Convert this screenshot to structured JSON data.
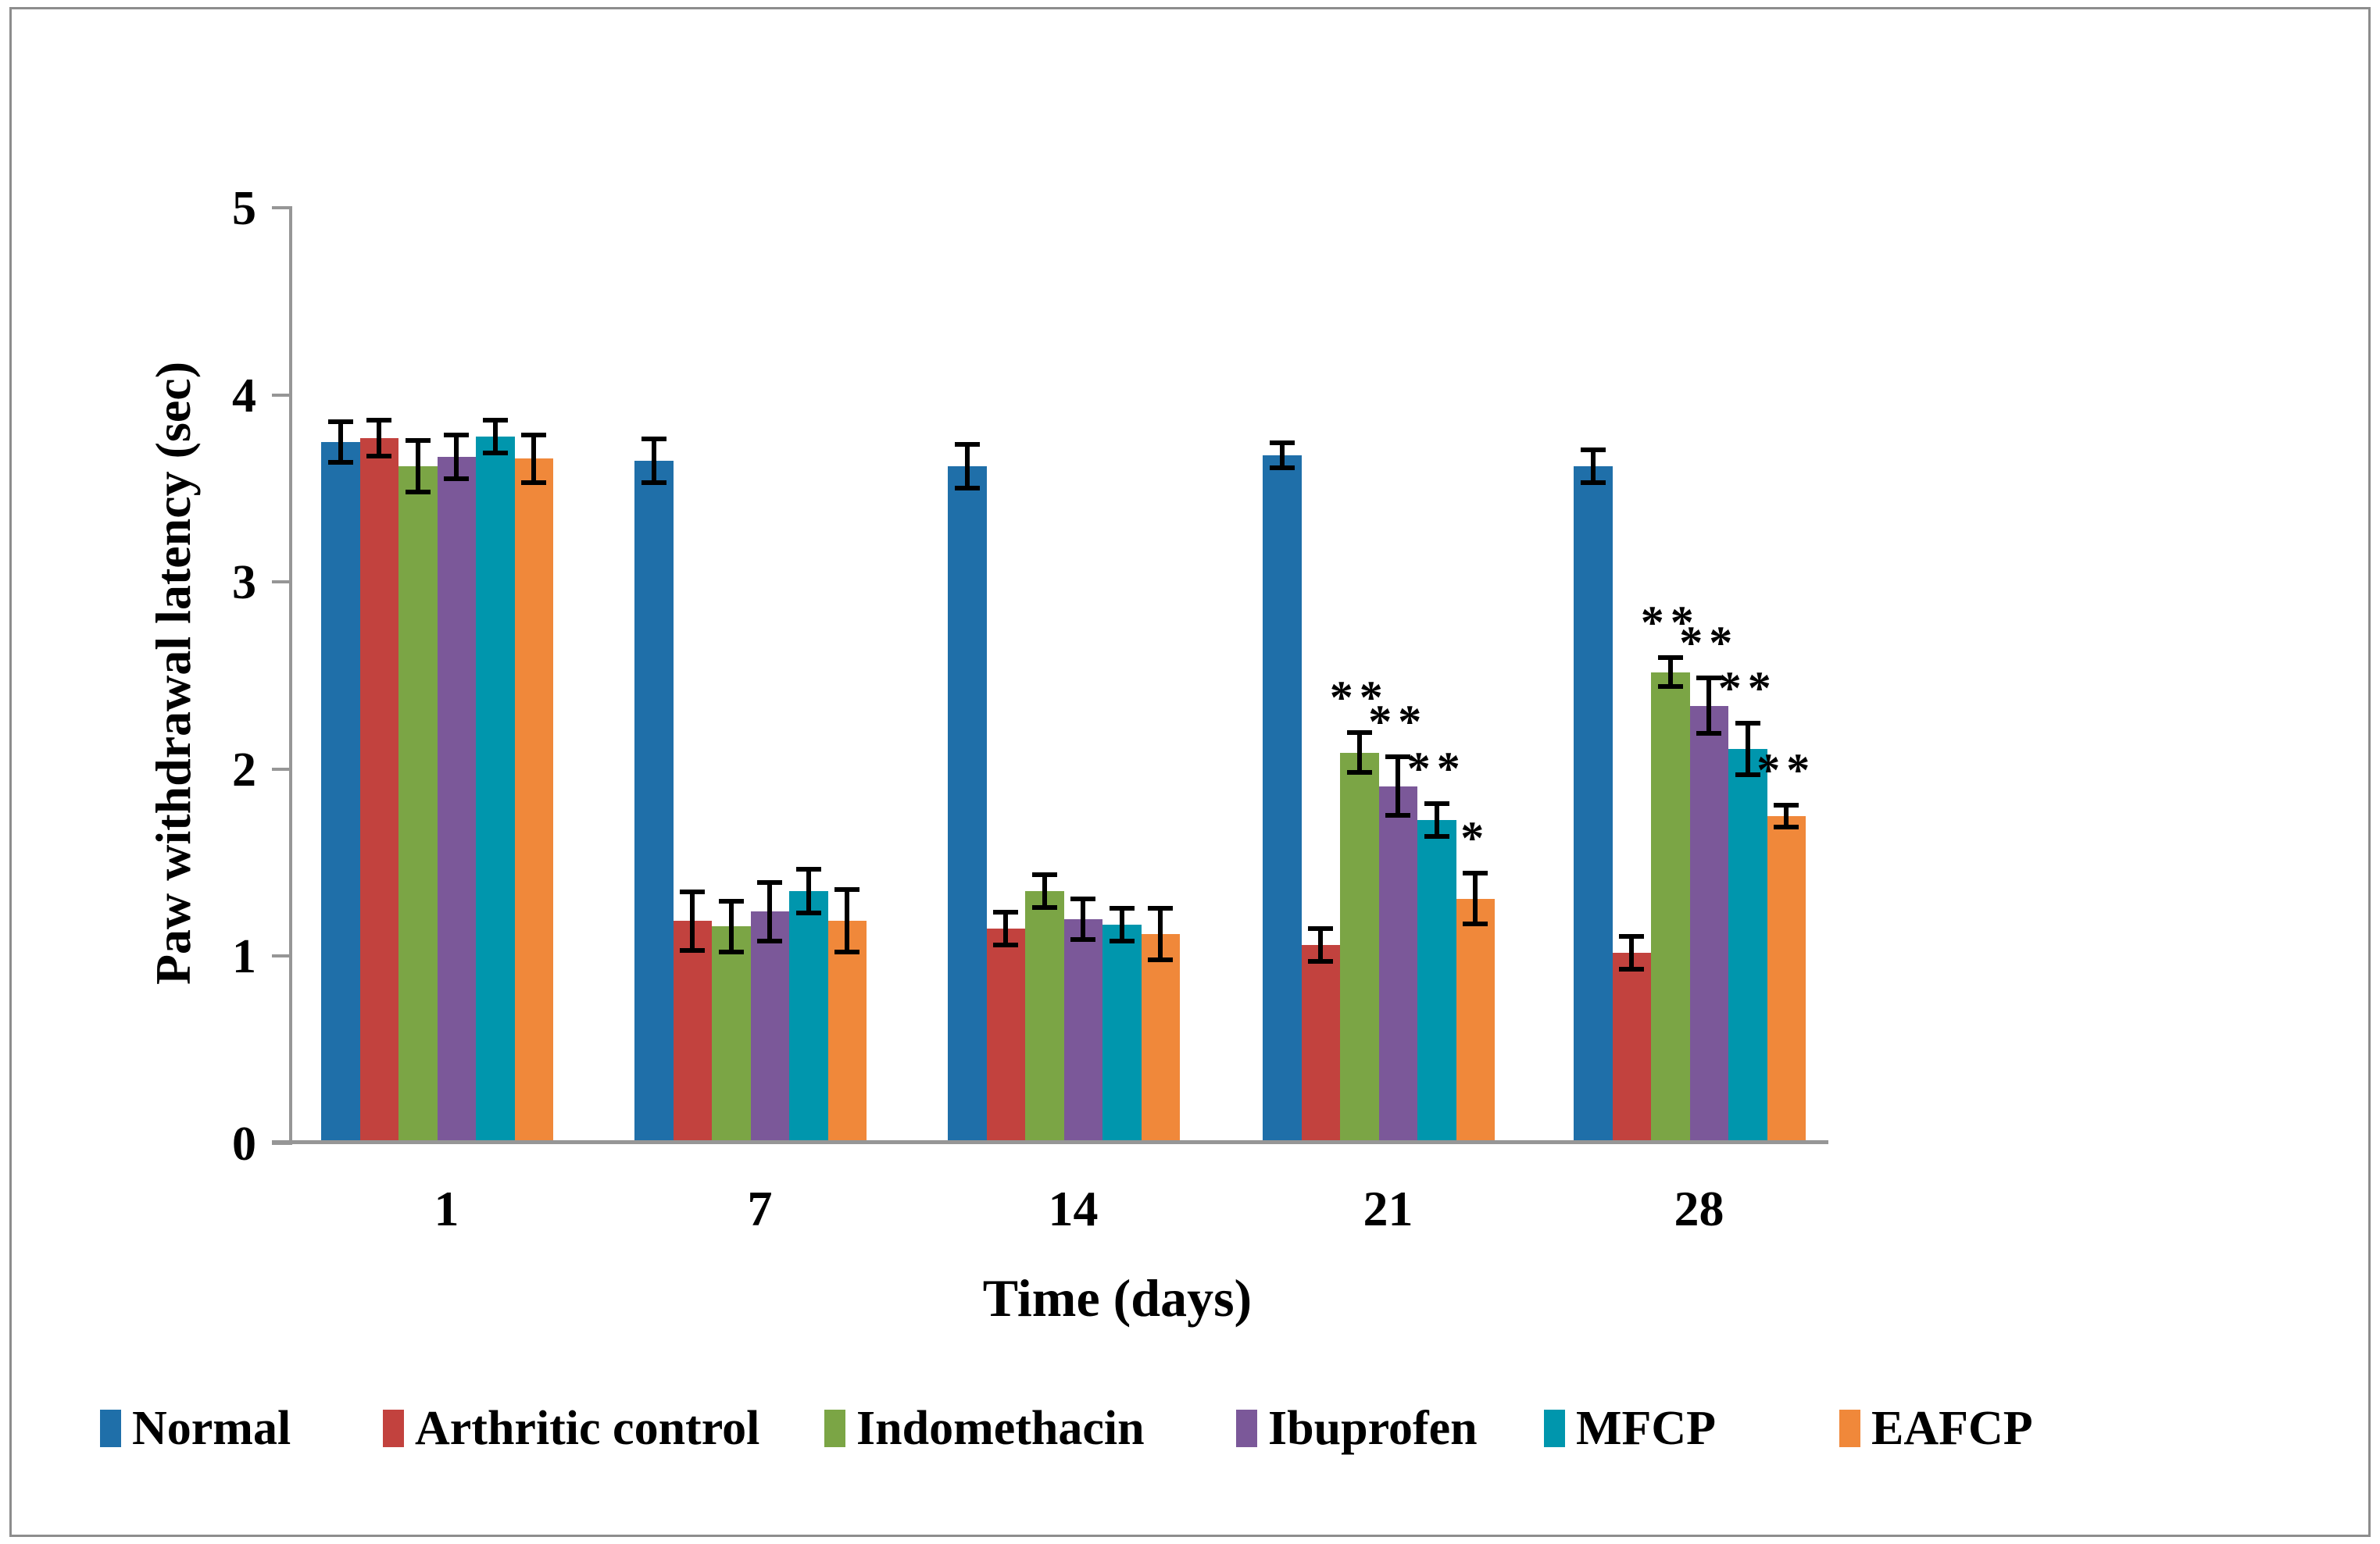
{
  "chart_data": {
    "type": "bar",
    "title": "",
    "xlabel": "Time (days)",
    "ylabel": "Paw withdrawal latency (sec)",
    "ylim": [
      0,
      5
    ],
    "yticks": [
      "0",
      "1",
      "2",
      "3",
      "4",
      "5"
    ],
    "categories": [
      "1",
      "7",
      "14",
      "21",
      "28"
    ],
    "legend_position": "bottom",
    "grid": false,
    "series": [
      {
        "name": "Normal",
        "color": "#1F6FA9",
        "values": [
          3.74,
          3.64,
          3.61,
          3.67,
          3.61
        ],
        "errors": [
          0.12,
          0.13,
          0.13,
          0.08,
          0.1
        ],
        "annotations": [
          "",
          "",
          "",
          "",
          ""
        ]
      },
      {
        "name": "Arthritic control",
        "color": "#C2423E",
        "values": [
          3.76,
          1.18,
          1.14,
          1.05,
          1.01
        ],
        "errors": [
          0.11,
          0.17,
          0.1,
          0.1,
          0.1
        ],
        "annotations": [
          "",
          "",
          "",
          "",
          ""
        ]
      },
      {
        "name": "Indomethacin",
        "color": "#7BA545",
        "values": [
          3.61,
          1.15,
          1.34,
          2.08,
          2.51
        ],
        "errors": [
          0.15,
          0.15,
          0.1,
          0.12,
          0.09
        ],
        "annotations": [
          "",
          "",
          "",
          "**",
          "**"
        ]
      },
      {
        "name": "Ibuprofen",
        "color": "#7B5899",
        "values": [
          3.66,
          1.23,
          1.19,
          1.9,
          2.33
        ],
        "errors": [
          0.13,
          0.17,
          0.12,
          0.17,
          0.16
        ],
        "annotations": [
          "",
          "",
          "",
          "**",
          "**"
        ]
      },
      {
        "name": "MFCP",
        "color": "#0096AD",
        "values": [
          3.77,
          1.34,
          1.16,
          1.72,
          2.1
        ],
        "errors": [
          0.1,
          0.13,
          0.1,
          0.1,
          0.15
        ],
        "annotations": [
          "",
          "",
          "",
          "**",
          "**"
        ]
      },
      {
        "name": "EAFCP",
        "color": "#F0883A",
        "values": [
          3.65,
          1.18,
          1.11,
          1.3,
          1.74
        ],
        "errors": [
          0.14,
          0.18,
          0.15,
          0.15,
          0.07
        ],
        "annotations": [
          "",
          "",
          "",
          "*",
          "**"
        ]
      }
    ]
  }
}
